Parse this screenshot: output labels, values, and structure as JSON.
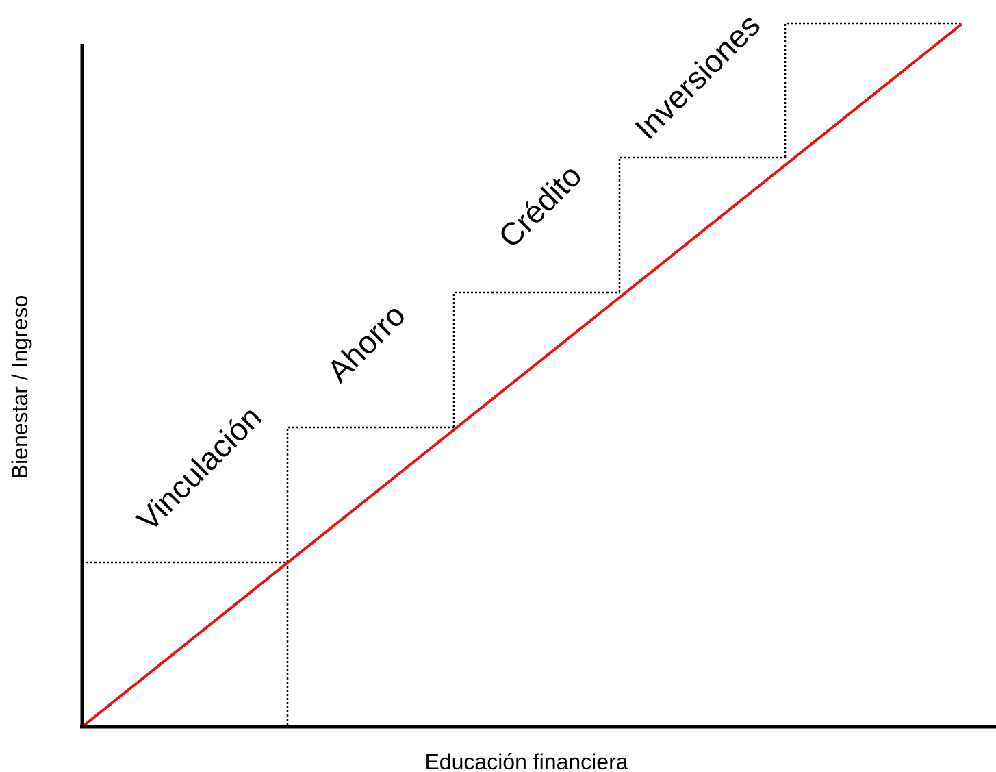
{
  "colors": {
    "trend_line": "#e31414",
    "axes": "#000000",
    "steps": "#000000"
  },
  "axes": {
    "x_label": "Educación financiera",
    "y_label": "Bienestar / Ingreso"
  },
  "stages": [
    {
      "label": "Vinculación"
    },
    {
      "label": "Ahorro"
    },
    {
      "label": "Crédito"
    },
    {
      "label": "Inversiones"
    }
  ]
}
